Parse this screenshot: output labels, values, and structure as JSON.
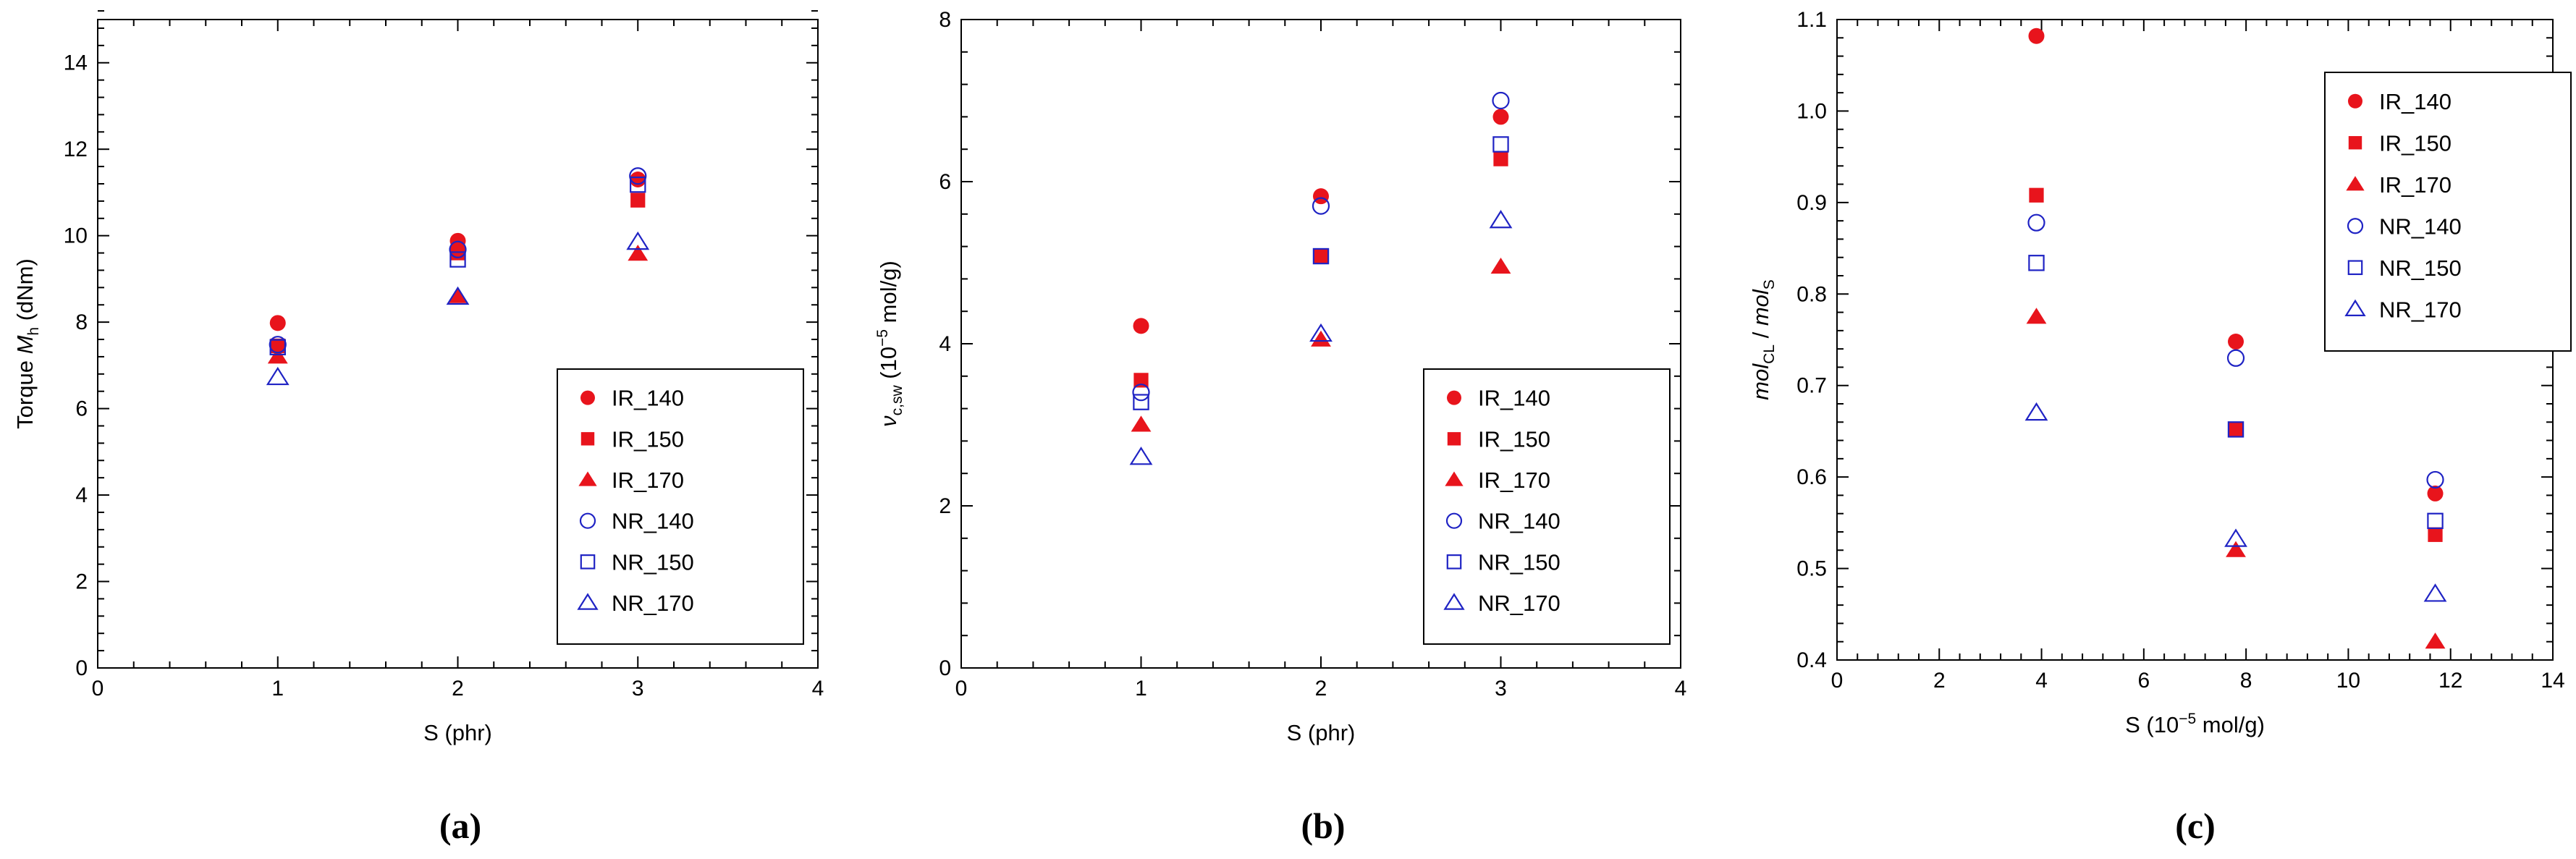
{
  "colors": {
    "ir": "#e8141c",
    "nr": "#1f23c4",
    "axis": "#000000"
  },
  "chart_data": [
    {
      "type": "scatter",
      "panel_label": "(a)",
      "xlabel": "S (phr)",
      "ylabel": {
        "prefix": "Torque ",
        "var": "M",
        "sub": "h",
        "suffix": " (dNm)"
      },
      "xlim": [
        0,
        4
      ],
      "ylim": [
        0,
        15
      ],
      "xticks": [
        0,
        1,
        2,
        3,
        4
      ],
      "yticks": [
        0,
        2,
        4,
        6,
        8,
        10,
        12,
        14
      ],
      "legend_position": "bottom-right",
      "series": [
        {
          "name": "IR_140",
          "marker": "circle-filled",
          "x": [
            1,
            2,
            3
          ],
          "y": [
            7.98,
            9.88,
            11.3
          ]
        },
        {
          "name": "IR_150",
          "marker": "square-filled",
          "x": [
            1,
            2,
            3
          ],
          "y": [
            7.45,
            9.6,
            10.82
          ]
        },
        {
          "name": "IR_170",
          "marker": "triangle-filled",
          "x": [
            1,
            2,
            3
          ],
          "y": [
            7.2,
            8.6,
            9.58
          ]
        },
        {
          "name": "NR_140",
          "marker": "circle-open",
          "x": [
            1,
            2,
            3
          ],
          "y": [
            7.48,
            9.68,
            11.38
          ]
        },
        {
          "name": "NR_150",
          "marker": "square-open",
          "x": [
            1,
            2,
            3
          ],
          "y": [
            7.42,
            9.45,
            11.18
          ]
        },
        {
          "name": "NR_170",
          "marker": "triangle-open",
          "x": [
            1,
            2,
            3
          ],
          "y": [
            6.72,
            8.58,
            9.85
          ]
        }
      ]
    },
    {
      "type": "scatter",
      "panel_label": "(b)",
      "xlabel": "S (phr)",
      "ylabel": {
        "var": "ν",
        "sub": "c,sw",
        "pre_exp": " (10",
        "exp": "−5",
        "post_exp": " mol/g)"
      },
      "xlim": [
        0,
        4
      ],
      "ylim": [
        0,
        8
      ],
      "xticks": [
        0,
        1,
        2,
        3,
        4
      ],
      "yticks": [
        0,
        2,
        4,
        6,
        8
      ],
      "legend_position": "bottom-right",
      "series": [
        {
          "name": "IR_140",
          "marker": "circle-filled",
          "x": [
            1,
            2,
            3
          ],
          "y": [
            4.22,
            5.82,
            6.8
          ]
        },
        {
          "name": "IR_150",
          "marker": "square-filled",
          "x": [
            1,
            2,
            3
          ],
          "y": [
            3.55,
            5.08,
            6.28
          ]
        },
        {
          "name": "IR_170",
          "marker": "triangle-filled",
          "x": [
            1,
            2,
            3
          ],
          "y": [
            3.0,
            4.05,
            4.95
          ]
        },
        {
          "name": "NR_140",
          "marker": "circle-open",
          "x": [
            1,
            2,
            3
          ],
          "y": [
            3.4,
            5.7,
            7.0
          ]
        },
        {
          "name": "NR_150",
          "marker": "square-open",
          "x": [
            1,
            2,
            3
          ],
          "y": [
            3.28,
            5.08,
            6.46
          ]
        },
        {
          "name": "NR_170",
          "marker": "triangle-open",
          "x": [
            1,
            2,
            3
          ],
          "y": [
            2.6,
            4.12,
            5.52
          ]
        }
      ]
    },
    {
      "type": "scatter",
      "panel_label": "(c)",
      "xlabel": {
        "pre_exp": "S (10",
        "exp": "−5",
        "post_exp": " mol/g)"
      },
      "ylabel": {
        "var1": "mol",
        "sub1": "CL",
        "mid": " / ",
        "var2": "mol",
        "sub2": "S"
      },
      "xlim": [
        0,
        14
      ],
      "ylim": [
        0.4,
        1.1
      ],
      "xticks": [
        0,
        2,
        4,
        6,
        8,
        10,
        12,
        14
      ],
      "yticks": [
        0.4,
        0.5,
        0.6,
        0.7,
        0.8,
        0.9,
        1.0,
        1.1
      ],
      "ytick_labels": [
        "0.4",
        "0.5",
        "0.6",
        "0.7",
        "0.8",
        "0.9",
        "1.0",
        "1.1"
      ],
      "legend_position": "top-right",
      "series": [
        {
          "name": "IR_140",
          "marker": "circle-filled",
          "x": [
            3.9,
            7.8,
            11.7
          ],
          "y": [
            1.082,
            0.748,
            0.582
          ]
        },
        {
          "name": "IR_150",
          "marker": "square-filled",
          "x": [
            3.9,
            7.8,
            11.7
          ],
          "y": [
            0.908,
            0.652,
            0.537
          ]
        },
        {
          "name": "IR_170",
          "marker": "triangle-filled",
          "x": [
            3.9,
            7.8,
            11.7
          ],
          "y": [
            0.775,
            0.52,
            0.42
          ]
        },
        {
          "name": "NR_140",
          "marker": "circle-open",
          "x": [
            3.9,
            7.8,
            11.7
          ],
          "y": [
            0.878,
            0.73,
            0.597
          ]
        },
        {
          "name": "NR_150",
          "marker": "square-open",
          "x": [
            3.9,
            7.8,
            11.7
          ],
          "y": [
            0.834,
            0.652,
            0.552
          ]
        },
        {
          "name": "NR_170",
          "marker": "triangle-open",
          "x": [
            3.9,
            7.8,
            11.7
          ],
          "y": [
            0.67,
            0.532,
            0.472
          ]
        }
      ]
    }
  ]
}
